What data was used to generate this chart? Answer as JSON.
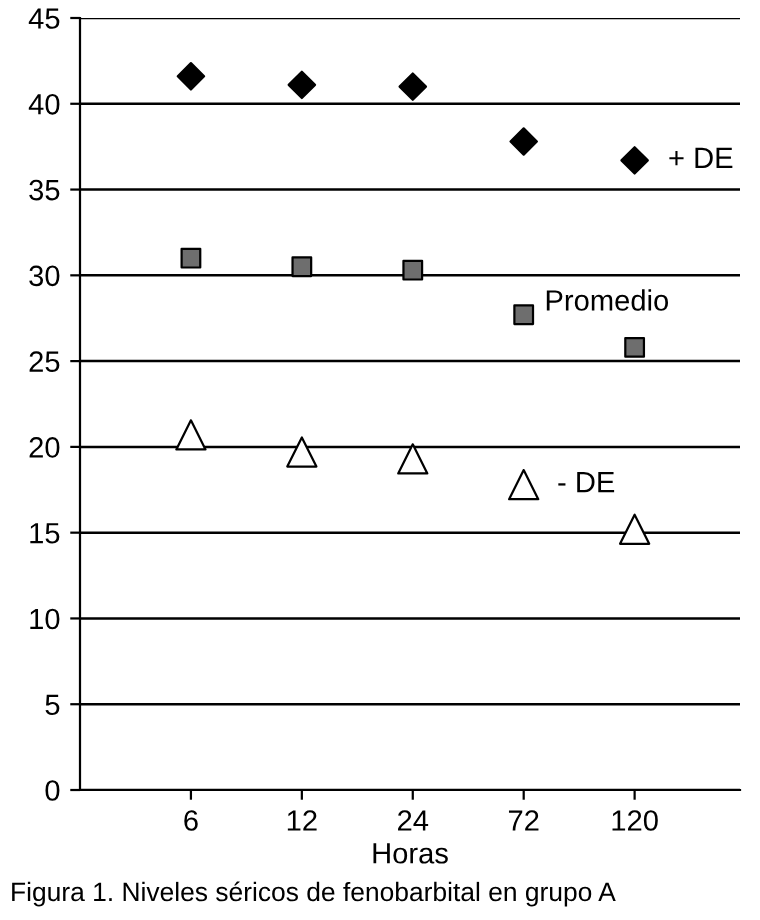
{
  "chart_data": {
    "type": "scatter",
    "xlabel": "Horas",
    "categories": [
      "6",
      "12",
      "24",
      "72",
      "120"
    ],
    "series": [
      {
        "name": "+ DE",
        "color": "#000000",
        "marker": "diamond",
        "values": [
          41.6,
          41.1,
          41.0,
          37.8,
          36.7
        ]
      },
      {
        "name": "Promedio",
        "color": "#6e6e6e",
        "marker": "square",
        "values": [
          31.0,
          30.5,
          30.3,
          27.7,
          25.8
        ]
      },
      {
        "name": "- DE",
        "color": "#ffffff",
        "marker": "triangle",
        "values": [
          20.7,
          19.7,
          19.3,
          17.8,
          15.2
        ]
      }
    ],
    "ylim": [
      0,
      45
    ],
    "yticks": [
      0,
      5,
      10,
      15,
      20,
      25,
      30,
      35,
      40,
      45
    ],
    "grid": "y",
    "legend": false,
    "annotations": [
      "Figura 1. Niveles séricos de fenobarbital en grupo A"
    ]
  }
}
